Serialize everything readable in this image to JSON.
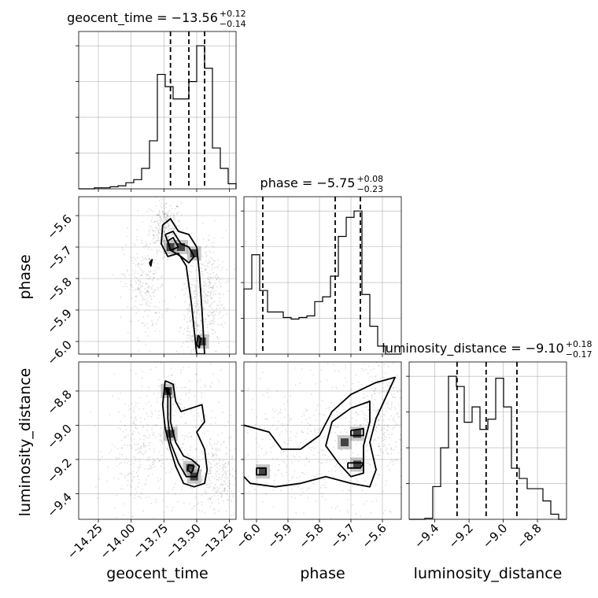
{
  "chart_data": {
    "type": "corner",
    "parameters": [
      "geocent_time",
      "phase",
      "luminosity_distance"
    ],
    "axis_labels": {
      "geocent_time": "geocent_time",
      "phase": "phase",
      "luminosity_distance": "luminosity_distance"
    },
    "ranges": {
      "geocent_time": [
        -14.4,
        -13.2
      ],
      "phase": [
        -6.04,
        -5.54
      ],
      "luminosity_distance": [
        -9.55,
        -8.63
      ]
    },
    "ticks": {
      "geocent_time": [
        -14.25,
        -14.0,
        -13.75,
        -13.5,
        -13.25
      ],
      "geocent_time_labels": [
        "−14.25",
        "−14.00",
        "−13.75",
        "−13.50",
        "−13.25"
      ],
      "phase": [
        -6.0,
        -5.9,
        -5.8,
        -5.7,
        -5.6
      ],
      "phase_labels": [
        "−6.0",
        "−5.9",
        "−5.8",
        "−5.7",
        "−5.6"
      ],
      "luminosity_distance": [
        -9.4,
        -9.2,
        -9.0,
        -8.8
      ],
      "luminosity_distance_labels": [
        "−9.4",
        "−9.2",
        "−9.0",
        "−8.8"
      ]
    },
    "titles": [
      {
        "param": "geocent_time",
        "prefix": "geocent_time = ",
        "median": "−13.56",
        "plus": "+0.12",
        "minus": "−0.14"
      },
      {
        "param": "phase",
        "prefix": "phase = ",
        "median": "−5.75",
        "plus": "+0.08",
        "minus": "−0.23"
      },
      {
        "param": "luminosity_distance",
        "prefix": "luminosity_distance = ",
        "median": "−9.10",
        "plus": "+0.18",
        "minus": "−0.17"
      }
    ],
    "quantiles": {
      "geocent_time": [
        -13.7,
        -13.56,
        -13.44
      ],
      "phase": [
        -5.98,
        -5.75,
        -5.67
      ],
      "luminosity_distance": [
        -9.27,
        -9.1,
        -8.92
      ]
    },
    "histograms": {
      "geocent_time": {
        "edges": [
          -14.4,
          -14.34,
          -14.28,
          -14.22,
          -14.16,
          -14.1,
          -14.04,
          -13.98,
          -13.92,
          -13.86,
          -13.8,
          -13.74,
          -13.68,
          -13.62,
          -13.56,
          -13.5,
          -13.44,
          -13.38,
          -13.32,
          -13.26,
          -13.2
        ],
        "counts": [
          0,
          0,
          1,
          1,
          2,
          3,
          6,
          9,
          20,
          47,
          112,
          100,
          88,
          88,
          105,
          140,
          118,
          40,
          20,
          5
        ]
      },
      "phase": {
        "edges": [
          -6.04,
          -6.015,
          -5.99,
          -5.965,
          -5.94,
          -5.915,
          -5.89,
          -5.865,
          -5.84,
          -5.815,
          -5.79,
          -5.765,
          -5.74,
          -5.715,
          -5.69,
          -5.665,
          -5.64,
          -5.615,
          -5.59,
          -5.565,
          -5.54
        ],
        "counts": [
          82,
          125,
          80,
          53,
          53,
          46,
          44,
          46,
          48,
          66,
          72,
          98,
          148,
          172,
          180,
          75,
          35,
          10,
          0,
          0
        ]
      },
      "luminosity_distance": {
        "edges": [
          -9.55,
          -9.504,
          -9.458,
          -9.412,
          -9.366,
          -9.32,
          -9.274,
          -9.228,
          -9.182,
          -9.136,
          -9.09,
          -9.044,
          -8.998,
          -8.952,
          -8.906,
          -8.86,
          -8.814,
          -8.768,
          -8.722,
          -8.676,
          -8.63
        ],
        "counts": [
          0,
          0,
          1,
          32,
          70,
          140,
          130,
          95,
          110,
          88,
          98,
          138,
          110,
          50,
          40,
          30,
          30,
          18,
          5,
          0
        ]
      }
    },
    "panels": [
      {
        "x": "geocent_time",
        "y": "phase",
        "dense": [
          [
            -13.7,
            -5.7
          ],
          [
            -13.62,
            -5.7
          ],
          [
            -13.52,
            -5.72
          ],
          [
            -13.46,
            -6.0
          ]
        ],
        "contours": [
          [
            [
              -13.76,
              -5.63
            ],
            [
              -13.7,
              -5.61
            ],
            [
              -13.64,
              -5.65
            ],
            [
              -13.56,
              -5.66
            ],
            [
              -13.5,
              -5.7
            ],
            [
              -13.48,
              -5.78
            ],
            [
              -13.46,
              -5.9
            ],
            [
              -13.44,
              -6.04
            ],
            [
              -13.5,
              -6.04
            ],
            [
              -13.54,
              -5.88
            ],
            [
              -13.58,
              -5.76
            ],
            [
              -13.64,
              -5.72
            ],
            [
              -13.72,
              -5.73
            ],
            [
              -13.77,
              -5.69
            ],
            [
              -13.76,
              -5.63
            ]
          ],
          [
            [
              -13.74,
              -5.66
            ],
            [
              -13.68,
              -5.65
            ],
            [
              -13.62,
              -5.69
            ],
            [
              -13.56,
              -5.7
            ],
            [
              -13.52,
              -5.73
            ],
            [
              -13.56,
              -5.75
            ],
            [
              -13.62,
              -5.73
            ],
            [
              -13.7,
              -5.71
            ],
            [
              -13.74,
              -5.66
            ]
          ],
          [
            [
              -13.72,
              -5.68
            ],
            [
              -13.68,
              -5.67
            ],
            [
              -13.64,
              -5.7
            ],
            [
              -13.7,
              -5.71
            ],
            [
              -13.72,
              -5.68
            ]
          ],
          [
            [
              -13.49,
              -5.98
            ],
            [
              -13.47,
              -5.99
            ],
            [
              -13.48,
              -6.02
            ],
            [
              -13.5,
              -6.01
            ],
            [
              -13.49,
              -5.98
            ]
          ],
          [
            [
              -13.86,
              -5.75
            ],
            [
              -13.84,
              -5.74
            ],
            [
              -13.85,
              -5.76
            ],
            [
              -13.86,
              -5.75
            ]
          ]
        ],
        "scatter_regions": [
          [
            -13.74,
            -5.63,
            0.06,
            0.04
          ],
          [
            -13.52,
            -5.95,
            0.05,
            0.09
          ],
          [
            -13.4,
            -5.85,
            0.06,
            0.1
          ],
          [
            -13.9,
            -5.82,
            0.08,
            0.08
          ]
        ]
      },
      {
        "x": "geocent_time",
        "y": "luminosity_distance",
        "dense": [
          [
            -13.72,
            -8.8
          ],
          [
            -13.7,
            -9.05
          ],
          [
            -13.55,
            -9.25
          ],
          [
            -13.52,
            -9.3
          ]
        ],
        "contours": [
          [
            [
              -13.74,
              -8.74
            ],
            [
              -13.68,
              -8.76
            ],
            [
              -13.66,
              -8.86
            ],
            [
              -13.62,
              -8.92
            ],
            [
              -13.54,
              -8.9
            ],
            [
              -13.46,
              -8.88
            ],
            [
              -13.44,
              -8.98
            ],
            [
              -13.5,
              -9.04
            ],
            [
              -13.44,
              -9.14
            ],
            [
              -13.42,
              -9.26
            ],
            [
              -13.44,
              -9.34
            ],
            [
              -13.52,
              -9.36
            ],
            [
              -13.6,
              -9.34
            ],
            [
              -13.66,
              -9.24
            ],
            [
              -13.7,
              -9.14
            ],
            [
              -13.74,
              -9.02
            ],
            [
              -13.76,
              -8.88
            ],
            [
              -13.74,
              -8.74
            ]
          ],
          [
            [
              -13.72,
              -8.78
            ],
            [
              -13.7,
              -8.84
            ],
            [
              -13.7,
              -8.98
            ],
            [
              -13.66,
              -9.1
            ],
            [
              -13.6,
              -9.18
            ],
            [
              -13.54,
              -9.2
            ],
            [
              -13.48,
              -9.24
            ],
            [
              -13.5,
              -9.3
            ],
            [
              -13.58,
              -9.3
            ],
            [
              -13.64,
              -9.22
            ],
            [
              -13.7,
              -9.1
            ],
            [
              -13.72,
              -8.96
            ],
            [
              -13.72,
              -8.78
            ]
          ],
          [
            [
              -13.74,
              -8.78
            ],
            [
              -13.71,
              -8.79
            ],
            [
              -13.72,
              -8.82
            ],
            [
              -13.74,
              -8.78
            ]
          ],
          [
            [
              -13.56,
              -9.23
            ],
            [
              -13.52,
              -9.24
            ],
            [
              -13.54,
              -9.28
            ],
            [
              -13.57,
              -9.26
            ],
            [
              -13.56,
              -9.23
            ]
          ]
        ],
        "scatter_regions": [
          [
            -13.6,
            -9.05,
            0.18,
            0.28
          ],
          [
            -13.95,
            -9.15,
            0.12,
            0.18
          ],
          [
            -13.35,
            -9.3,
            0.1,
            0.12
          ]
        ]
      },
      {
        "x": "phase",
        "y": "luminosity_distance",
        "dense": [
          [
            -5.68,
            -9.05
          ],
          [
            -5.68,
            -9.23
          ],
          [
            -5.98,
            -9.27
          ],
          [
            -5.72,
            -9.1
          ]
        ],
        "contours": [
          [
            [
              -6.04,
              -9.0
            ],
            [
              -5.96,
              -9.04
            ],
            [
              -5.92,
              -9.14
            ],
            [
              -5.86,
              -9.14
            ],
            [
              -5.8,
              -9.06
            ],
            [
              -5.76,
              -8.92
            ],
            [
              -5.7,
              -8.82
            ],
            [
              -5.62,
              -8.75
            ],
            [
              -5.56,
              -8.72
            ],
            [
              -5.58,
              -8.8
            ],
            [
              -5.62,
              -8.96
            ],
            [
              -5.64,
              -9.1
            ],
            [
              -5.62,
              -9.26
            ],
            [
              -5.64,
              -9.36
            ],
            [
              -5.7,
              -9.34
            ],
            [
              -5.78,
              -9.3
            ],
            [
              -5.86,
              -9.34
            ],
            [
              -5.94,
              -9.36
            ],
            [
              -6.02,
              -9.34
            ],
            [
              -6.04,
              -9.3
            ]
          ],
          [
            [
              -5.76,
              -8.98
            ],
            [
              -5.7,
              -8.9
            ],
            [
              -5.64,
              -8.86
            ],
            [
              -5.64,
              -8.98
            ],
            [
              -5.66,
              -9.12
            ],
            [
              -5.66,
              -9.28
            ],
            [
              -5.7,
              -9.3
            ],
            [
              -5.74,
              -9.22
            ],
            [
              -5.78,
              -9.12
            ],
            [
              -5.76,
              -8.98
            ]
          ],
          [
            [
              -5.7,
              -9.03
            ],
            [
              -5.66,
              -9.02
            ],
            [
              -5.66,
              -9.06
            ],
            [
              -5.7,
              -9.06
            ],
            [
              -5.7,
              -9.03
            ]
          ],
          [
            [
              -5.71,
              -9.22
            ],
            [
              -5.66,
              -9.22
            ],
            [
              -5.67,
              -9.25
            ],
            [
              -5.71,
              -9.25
            ],
            [
              -5.71,
              -9.22
            ]
          ],
          [
            [
              -6.0,
              -9.25
            ],
            [
              -5.97,
              -9.25
            ],
            [
              -5.97,
              -9.29
            ],
            [
              -6.0,
              -9.29
            ],
            [
              -6.0,
              -9.25
            ]
          ]
        ],
        "scatter_regions": [
          [
            -5.7,
            -9.05,
            0.1,
            0.3
          ],
          [
            -5.92,
            -9.15,
            0.1,
            0.2
          ],
          [
            -5.6,
            -8.9,
            0.04,
            0.2
          ]
        ]
      }
    ]
  }
}
